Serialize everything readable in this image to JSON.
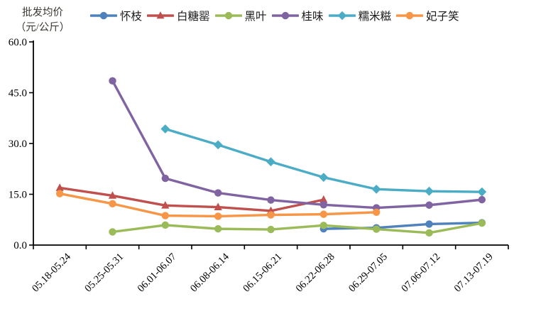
{
  "chart": {
    "y_axis_title_lines": [
      "批发均价",
      "（元/公斤）"
    ],
    "y_tick_labels": [
      "0.0",
      "15.0",
      "30.0",
      "45.0",
      "60.0"
    ]
  },
  "chart_data": {
    "type": "line",
    "title": "",
    "ylabel": "批发均价（元/公斤）",
    "xlabel": "",
    "ylim": [
      0,
      60
    ],
    "y_ticks": [
      0,
      15,
      30,
      45,
      60
    ],
    "grid": false,
    "legend_position": "top",
    "categories": [
      "05.18-05.24",
      "05.25-05.31",
      "06.01-06.07",
      "06.08-06.14",
      "06.15-06.21",
      "06.22-06.28",
      "06.29-07.05",
      "07.06-07.12",
      "07.13-07.19"
    ],
    "series": [
      {
        "name": "怀枝",
        "color": "#4F81BD",
        "marker": "circle",
        "values": [
          null,
          null,
          null,
          null,
          null,
          4.8,
          5.1,
          6.2,
          6.6
        ]
      },
      {
        "name": "白糖罂",
        "color": "#C0504D",
        "marker": "triangle",
        "values": [
          16.9,
          14.6,
          11.7,
          11.2,
          10.1,
          13.4,
          null,
          null,
          null
        ]
      },
      {
        "name": "黑叶",
        "color": "#9BBB59",
        "marker": "circle",
        "values": [
          null,
          3.9,
          5.9,
          4.8,
          4.6,
          5.8,
          4.7,
          3.6,
          6.5
        ]
      },
      {
        "name": "桂味",
        "color": "#8064A2",
        "marker": "circle",
        "values": [
          null,
          48.5,
          19.7,
          15.4,
          13.3,
          11.9,
          11.0,
          11.8,
          13.4
        ]
      },
      {
        "name": "糯米糍",
        "color": "#4BACC6",
        "marker": "diamond",
        "values": [
          null,
          null,
          34.3,
          29.6,
          24.6,
          20.0,
          16.5,
          15.9,
          15.7
        ]
      },
      {
        "name": "妃子笑",
        "color": "#F79646",
        "marker": "circle",
        "values": [
          15.2,
          12.2,
          8.7,
          8.5,
          8.9,
          9.1,
          9.7,
          null,
          null
        ]
      }
    ]
  }
}
